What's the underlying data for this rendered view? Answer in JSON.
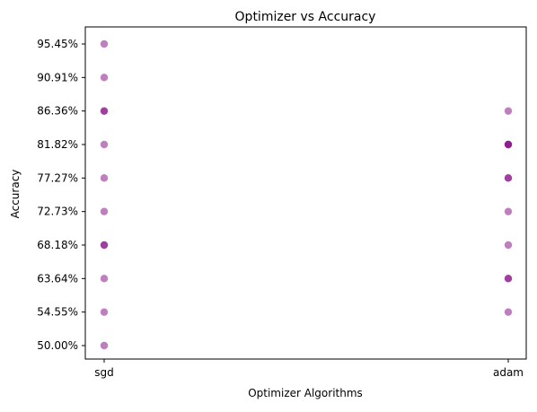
{
  "chart_data": {
    "type": "scatter",
    "title": "Optimizer vs Accuracy",
    "xlabel": "Optimizer Algorithms",
    "ylabel": "Accuracy",
    "categories": [
      "sgd",
      "adam"
    ],
    "y_ticks": [
      "50.00%",
      "54.55%",
      "63.64%",
      "68.18%",
      "72.73%",
      "77.27%",
      "81.82%",
      "86.36%",
      "90.91%",
      "95.45%"
    ],
    "points": [
      {
        "x": "sgd",
        "y": "50.00%"
      },
      {
        "x": "sgd",
        "y": "54.55%"
      },
      {
        "x": "sgd",
        "y": "63.64%"
      },
      {
        "x": "sgd",
        "y": "68.18%"
      },
      {
        "x": "sgd",
        "y": "68.18%"
      },
      {
        "x": "sgd",
        "y": "72.73%"
      },
      {
        "x": "sgd",
        "y": "77.27%"
      },
      {
        "x": "sgd",
        "y": "81.82%"
      },
      {
        "x": "sgd",
        "y": "86.36%"
      },
      {
        "x": "sgd",
        "y": "86.36%"
      },
      {
        "x": "sgd",
        "y": "90.91%"
      },
      {
        "x": "sgd",
        "y": "95.45%"
      },
      {
        "x": "adam",
        "y": "54.55%"
      },
      {
        "x": "adam",
        "y": "63.64%"
      },
      {
        "x": "adam",
        "y": "63.64%"
      },
      {
        "x": "adam",
        "y": "68.18%"
      },
      {
        "x": "adam",
        "y": "72.73%"
      },
      {
        "x": "adam",
        "y": "77.27%"
      },
      {
        "x": "adam",
        "y": "77.27%"
      },
      {
        "x": "adam",
        "y": "81.82%"
      },
      {
        "x": "adam",
        "y": "81.82%"
      },
      {
        "x": "adam",
        "y": "81.82%"
      },
      {
        "x": "adam",
        "y": "86.36%"
      }
    ],
    "marker_color": "#800080",
    "marker_alpha": 0.5,
    "grid": false,
    "legend": "none"
  }
}
